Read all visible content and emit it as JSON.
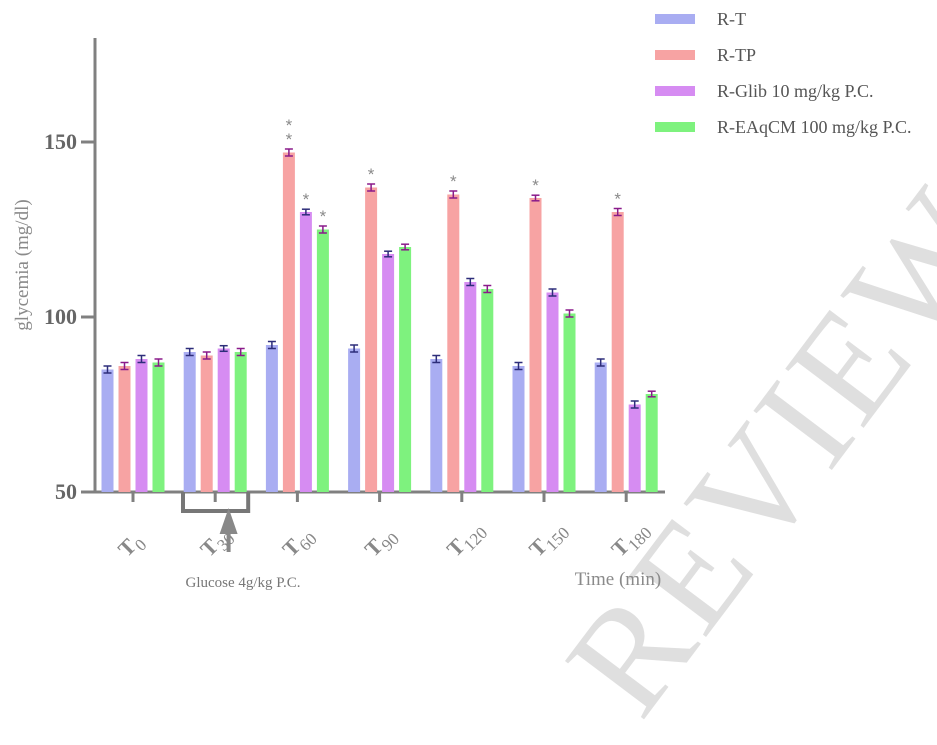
{
  "chart_data": {
    "type": "bar",
    "ylabel": "glycemia (mg/dl)",
    "xlabel": "Time (min)",
    "ylim": [
      50,
      180
    ],
    "yticks": [
      50,
      100,
      150
    ],
    "categories": [
      "T0",
      "T30",
      "T60",
      "T90",
      "T120",
      "T150",
      "T180"
    ],
    "category_labels": [
      {
        "main": "T",
        "sub": "0"
      },
      {
        "main": "T",
        "sub": "30"
      },
      {
        "main": "T",
        "sub": "60"
      },
      {
        "main": "T",
        "sub": "90"
      },
      {
        "main": "T",
        "sub": "120"
      },
      {
        "main": "T",
        "sub": "150"
      },
      {
        "main": "T",
        "sub": "180"
      }
    ],
    "series": [
      {
        "name": "R-T",
        "color": "#a9adf2",
        "values": [
          85,
          90,
          92,
          91,
          88,
          86,
          87
        ],
        "errors": [
          1,
          1,
          1,
          1,
          1,
          1,
          1
        ]
      },
      {
        "name": "R-TP",
        "color": "#f7a3a3",
        "values": [
          86,
          89,
          147,
          137,
          135,
          134,
          130
        ],
        "errors": [
          1,
          1,
          1,
          1,
          1,
          0.8,
          1
        ]
      },
      {
        "name": "R-Glib 10 mg/kg P.C.",
        "color": "#d68cf2",
        "values": [
          88,
          91,
          130,
          118,
          110,
          107,
          75
        ],
        "errors": [
          1,
          0.8,
          0.8,
          0.8,
          1,
          1,
          1
        ]
      },
      {
        "name": "R-EAqCM 100 mg/kg P.C.",
        "color": "#7ef27e",
        "values": [
          87,
          90,
          125,
          120,
          108,
          101,
          78
        ],
        "errors": [
          1,
          1,
          1,
          0.8,
          1,
          1,
          0.8
        ]
      }
    ],
    "significance": [
      {
        "category": 2,
        "series": 1,
        "label": "*\n*"
      },
      {
        "category": 2,
        "series": 2,
        "label": "*"
      },
      {
        "category": 2,
        "series": 3,
        "label": "*"
      },
      {
        "category": 3,
        "series": 1,
        "label": "*"
      },
      {
        "category": 4,
        "series": 1,
        "label": "*"
      },
      {
        "category": 5,
        "series": 1,
        "label": "*"
      },
      {
        "category": 6,
        "series": 1,
        "label": "*"
      }
    ],
    "annotation": "Glucose 4g/kg P.C.",
    "legend_position": "top-right",
    "grid": false
  },
  "watermark": "REVIEW"
}
